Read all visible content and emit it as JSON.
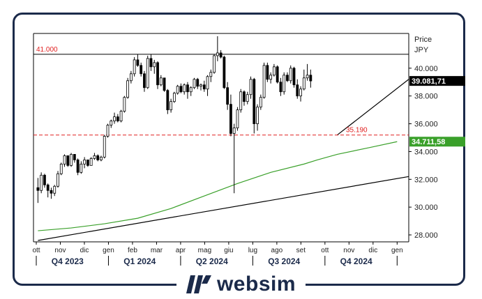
{
  "brand": {
    "name": "websim"
  },
  "chart_data": {
    "type": "candlestick",
    "ylabel": "Price",
    "unit": "JPY",
    "ylim": [
      27500,
      42500
    ],
    "y_ticks": [
      {
        "value": 28000,
        "label": "28.000"
      },
      {
        "value": 30000,
        "label": "30.000"
      },
      {
        "value": 32000,
        "label": "32.000"
      },
      {
        "value": 34000,
        "label": "34.000"
      },
      {
        "value": 36000,
        "label": "36.000"
      },
      {
        "value": 38000,
        "label": "38.000"
      },
      {
        "value": 40000,
        "label": "40.000"
      }
    ],
    "months": [
      "ott",
      "nov",
      "dic",
      "gen",
      "feb",
      "mar",
      "apr",
      "mag",
      "giu",
      "lug",
      "ago",
      "set",
      "ott",
      "nov",
      "dic",
      "gen"
    ],
    "quarters": [
      "Q4 2023",
      "Q1 2024",
      "Q2 2024",
      "Q3 2024",
      "Q4 2024"
    ],
    "horizontal_levels": [
      {
        "value": 41000,
        "label": "41.000",
        "color": "#000000",
        "style": "solid",
        "label_color": "#e02020"
      },
      {
        "value": 35190,
        "label": "35.190",
        "color": "#e02020",
        "style": "dashed",
        "label_color": "#e02020"
      }
    ],
    "price_badges": [
      {
        "value": 39081.71,
        "label": "39.081,71",
        "bg": "#000000",
        "color": "#ffffff"
      },
      {
        "value": 34711.58,
        "label": "34.711,58",
        "bg": "#3aa02a",
        "color": "#ffffff"
      }
    ],
    "moving_average": {
      "color": "#3aa02a",
      "points": [
        [
          0,
          28300
        ],
        [
          10,
          28500
        ],
        [
          20,
          28800
        ],
        [
          30,
          29200
        ],
        [
          40,
          29900
        ],
        [
          50,
          30800
        ],
        [
          60,
          31700
        ],
        [
          70,
          32500
        ],
        [
          80,
          33100
        ],
        [
          84,
          33400
        ],
        [
          90,
          33800
        ],
        [
          100,
          34300
        ],
        [
          108,
          34711.58
        ]
      ]
    },
    "trendlines": [
      {
        "from": [
          0,
          27600
        ],
        "to": [
          114,
          32200
        ],
        "color": "#000000"
      },
      {
        "from": [
          90,
          35190
        ],
        "to": [
          114,
          39200
        ],
        "color": "#000000"
      }
    ],
    "candles": [
      [
        31400,
        32100,
        30300,
        31200
      ],
      [
        31200,
        32500,
        31000,
        32300
      ],
      [
        32300,
        32400,
        31400,
        31600
      ],
      [
        31600,
        31700,
        30700,
        31200
      ],
      [
        31200,
        31400,
        30600,
        31000
      ],
      [
        31000,
        31600,
        30800,
        31500
      ],
      [
        31500,
        32600,
        31400,
        32400
      ],
      [
        32400,
        33200,
        32300,
        33100
      ],
      [
        33100,
        33800,
        32900,
        33700
      ],
      [
        33700,
        33700,
        32900,
        33000
      ],
      [
        33000,
        33900,
        32900,
        33800
      ],
      [
        33800,
        33800,
        33200,
        33400
      ],
      [
        33400,
        33500,
        32300,
        32500
      ],
      [
        32500,
        33300,
        32400,
        33100
      ],
      [
        33100,
        33600,
        32800,
        33400
      ],
      [
        33400,
        33400,
        32900,
        33000
      ],
      [
        33000,
        33600,
        33000,
        33500
      ],
      [
        33500,
        33900,
        33400,
        33700
      ],
      [
        33700,
        33800,
        33300,
        33400
      ],
      [
        33400,
        33700,
        33300,
        33600
      ],
      [
        33600,
        35200,
        33500,
        35100
      ],
      [
        35100,
        36000,
        35000,
        35900
      ],
      [
        35900,
        36300,
        35700,
        36200
      ],
      [
        36200,
        36800,
        36000,
        36500
      ],
      [
        36500,
        36700,
        36100,
        36200
      ],
      [
        36200,
        37000,
        36100,
        36900
      ],
      [
        36900,
        38000,
        36800,
        37900
      ],
      [
        37900,
        39300,
        37800,
        39100
      ],
      [
        39100,
        39800,
        38900,
        39600
      ],
      [
        39600,
        40800,
        39400,
        40600
      ],
      [
        40600,
        41000,
        40100,
        40200
      ],
      [
        40200,
        40400,
        39400,
        39600
      ],
      [
        39600,
        39800,
        38300,
        38600
      ],
      [
        38600,
        40900,
        38500,
        40700
      ],
      [
        40700,
        41000,
        39800,
        40100
      ],
      [
        40100,
        40600,
        39600,
        40400
      ],
      [
        40400,
        40500,
        38500,
        38800
      ],
      [
        38800,
        39500,
        38700,
        39300
      ],
      [
        39300,
        39300,
        38300,
        38400
      ],
      [
        38400,
        38500,
        36700,
        37000
      ],
      [
        37000,
        37800,
        36800,
        37600
      ],
      [
        37600,
        38300,
        37500,
        38200
      ],
      [
        38200,
        38800,
        38100,
        38700
      ],
      [
        38700,
        38900,
        38200,
        38300
      ],
      [
        38300,
        38900,
        38100,
        38800
      ],
      [
        38800,
        39000,
        37800,
        38300
      ],
      [
        38300,
        38700,
        38000,
        38600
      ],
      [
        38600,
        39300,
        38500,
        39200
      ],
      [
        39200,
        39300,
        38500,
        38700
      ],
      [
        38700,
        38900,
        38400,
        38800
      ],
      [
        38800,
        39100,
        38300,
        38500
      ],
      [
        38500,
        39500,
        38000,
        39400
      ],
      [
        39400,
        39900,
        39000,
        39700
      ],
      [
        39700,
        41000,
        39600,
        40900
      ],
      [
        40900,
        42300,
        40500,
        41100
      ],
      [
        41100,
        41300,
        40700,
        40800
      ],
      [
        40800,
        40900,
        38500,
        38600
      ],
      [
        38600,
        39000,
        37000,
        37400
      ],
      [
        37400,
        38100,
        35100,
        35300
      ],
      [
        35300,
        36000,
        31000,
        35700
      ],
      [
        35700,
        37200,
        35500,
        37000
      ],
      [
        37000,
        38500,
        36800,
        38300
      ],
      [
        38300,
        38400,
        37300,
        37600
      ],
      [
        37600,
        38300,
        37400,
        38100
      ],
      [
        38100,
        39400,
        37800,
        39200
      ],
      [
        39200,
        39300,
        35300,
        36000
      ],
      [
        36000,
        37400,
        35500,
        37200
      ],
      [
        37200,
        38100,
        37000,
        37900
      ],
      [
        37900,
        40400,
        37800,
        40200
      ],
      [
        40200,
        40400,
        39000,
        39200
      ],
      [
        39200,
        39700,
        38900,
        39500
      ],
      [
        39500,
        40300,
        39400,
        40100
      ],
      [
        40100,
        40200,
        38900,
        39000
      ],
      [
        39000,
        39300,
        38000,
        38300
      ],
      [
        38300,
        39700,
        38100,
        39500
      ],
      [
        39500,
        39700,
        39000,
        39100
      ],
      [
        39100,
        40200,
        38900,
        40000
      ],
      [
        40000,
        40100,
        38600,
        38800
      ],
      [
        38800,
        39200,
        37800,
        38000
      ],
      [
        38000,
        38700,
        37600,
        38500
      ],
      [
        38500,
        39900,
        38400,
        39300
      ],
      [
        39300,
        40300,
        39100,
        39500
      ],
      [
        39500,
        39900,
        38600,
        39082
      ]
    ]
  }
}
